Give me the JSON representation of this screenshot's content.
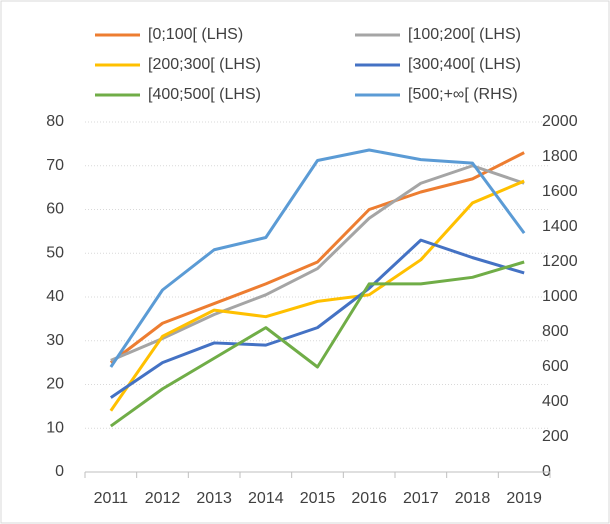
{
  "chart_data": {
    "type": "line",
    "categories": [
      "2011",
      "2012",
      "2013",
      "2014",
      "2015",
      "2016",
      "2017",
      "2018",
      "2019"
    ],
    "series": [
      {
        "name": "[0;100[ (LHS)",
        "color": "#ed7d31",
        "values": [
          25,
          34,
          38.5,
          43,
          48,
          60,
          64,
          67,
          73
        ]
      },
      {
        "name": "[100;200[ (LHS)",
        "color": "#a5a5a5",
        "values": [
          25.5,
          30.5,
          36,
          40.5,
          46.5,
          58,
          66,
          70,
          66
        ]
      },
      {
        "name": "[200;300[ (LHS)",
        "color": "#ffc000",
        "values": [
          14,
          31,
          37,
          35.5,
          39,
          40.5,
          48.5,
          61.5,
          66.5
        ]
      },
      {
        "name": "[300;400[ (LHS)",
        "color": "#4472c4",
        "values": [
          17,
          25,
          29.5,
          29,
          33,
          42,
          53,
          49,
          45.5
        ]
      },
      {
        "name": "[400;500[ (LHS)",
        "color": "#70ad47",
        "values": [
          10.5,
          19,
          26,
          33,
          24,
          43,
          43,
          44.5,
          48
        ]
      },
      {
        "name": "[500;+∞[ (RHS)",
        "color": "#5b9bd5",
        "axis": "y2",
        "values": [
          600,
          1040,
          1270,
          1340,
          1780,
          1840,
          1785,
          1765,
          1365
        ]
      }
    ],
    "ylim": [
      0,
      80
    ],
    "yticks": [
      0,
      10,
      20,
      30,
      40,
      50,
      60,
      70,
      80
    ],
    "y2lim": [
      0,
      2000
    ],
    "y2ticks": [
      0,
      200,
      400,
      600,
      800,
      1000,
      1200,
      1400,
      1600,
      1800,
      2000
    ],
    "grid": true,
    "legend": "top"
  }
}
